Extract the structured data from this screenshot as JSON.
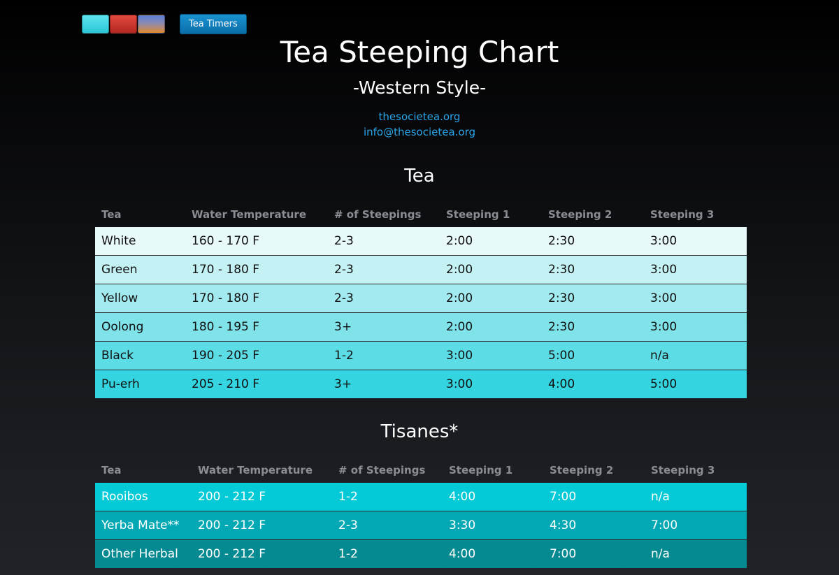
{
  "topbar": {
    "swatches": [
      {
        "name": "cyan",
        "color": "#2ac6d6"
      },
      {
        "name": "red",
        "color": "#c8302a"
      },
      {
        "name": "sunset",
        "color": "#e08a2e"
      }
    ],
    "timer_button_label": "Tea Timers"
  },
  "header": {
    "title": "Tea Steeping Chart",
    "subtitle": "-Western Style-",
    "site_link": "thesocietea.org",
    "email_link": "info@thesocietea.org"
  },
  "tea_section": {
    "title": "Tea",
    "columns": [
      "Tea",
      "Water Temperature",
      "# of Steepings",
      "Steeping 1",
      "Steeping 2",
      "Steeping 3"
    ],
    "rows": [
      {
        "name": "White",
        "temp": "160 - 170 F",
        "steepings": "2-3",
        "s1": "2:00",
        "s2": "2:30",
        "s3": "3:00",
        "color": "#e8f9fa"
      },
      {
        "name": "Green",
        "temp": "170 - 180 F",
        "steepings": "2-3",
        "s1": "2:00",
        "s2": "2:30",
        "s3": "3:00",
        "color": "#c3f1f4"
      },
      {
        "name": "Yellow",
        "temp": "170 - 180 F",
        "steepings": "2-3",
        "s1": "2:00",
        "s2": "2:30",
        "s3": "3:00",
        "color": "#a2eaef"
      },
      {
        "name": "Oolong",
        "temp": "180 - 195 F",
        "steepings": "3+",
        "s1": "2:00",
        "s2": "2:30",
        "s3": "3:00",
        "color": "#80e3ea"
      },
      {
        "name": "Black",
        "temp": "190 - 205 F",
        "steepings": "1-2",
        "s1": "3:00",
        "s2": "5:00",
        "s3": "n/a",
        "color": "#5cdce5"
      },
      {
        "name": "Pu-erh",
        "temp": "205 - 210 F",
        "steepings": "3+",
        "s1": "3:00",
        "s2": "4:00",
        "s3": "5:00",
        "color": "#34d5e0"
      }
    ]
  },
  "tisane_section": {
    "title": "Tisanes*",
    "columns": [
      "Tea",
      "Water Temperature",
      "# of Steepings",
      "Steeping 1",
      "Steeping 2",
      "Steeping 3"
    ],
    "rows": [
      {
        "name": "Rooibos",
        "temp": "200 - 212 F",
        "steepings": "1-2",
        "s1": "4:00",
        "s2": "7:00",
        "s3": "n/a",
        "color": "#04c9d6"
      },
      {
        "name": "Yerba Mate**",
        "temp": "200 - 212 F",
        "steepings": "2-3",
        "s1": "3:30",
        "s2": "4:30",
        "s3": "7:00",
        "color": "#02a9b4"
      },
      {
        "name": "Other Herbal",
        "temp": "200 - 212 F",
        "steepings": "1-2",
        "s1": "4:00",
        "s2": "7:00",
        "s3": "n/a",
        "color": "#068a92"
      }
    ]
  }
}
